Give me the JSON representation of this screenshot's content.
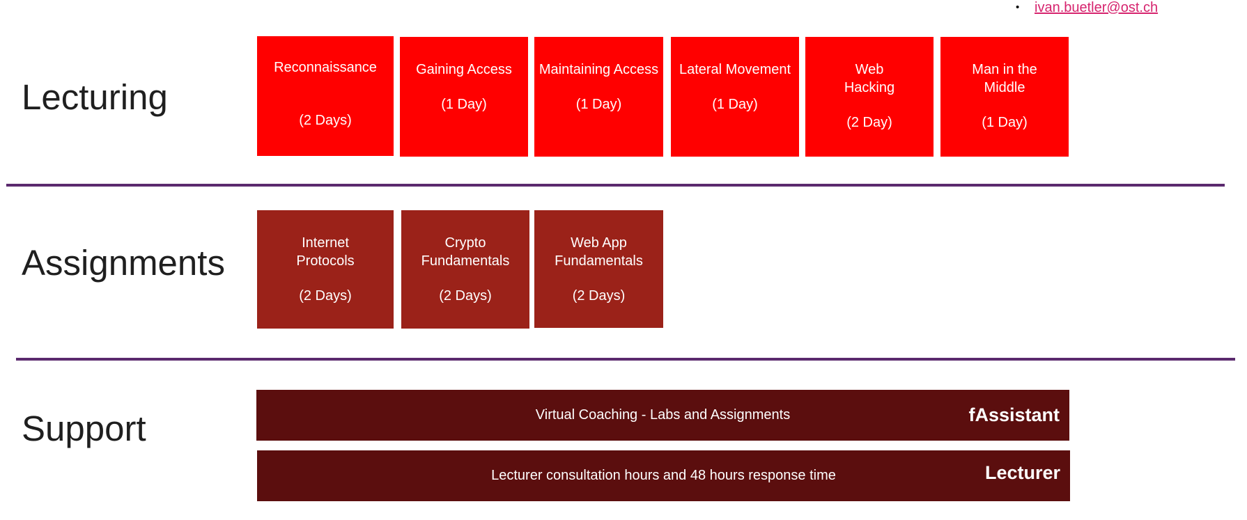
{
  "contact": {
    "bullet": "•",
    "email": "ivan.buetler@ost.ch"
  },
  "rows": {
    "lecturing": "Lecturing",
    "assignments": "Assignments",
    "support": "Support"
  },
  "lecturing_modules": [
    {
      "name": "Reconnaissance",
      "duration": "(2 Days)"
    },
    {
      "name": "Gaining Access",
      "duration": "(1 Day)"
    },
    {
      "name": "Maintaining Access",
      "duration": "(1 Day)"
    },
    {
      "name": "Lateral Movement",
      "duration": "(1 Day)"
    },
    {
      "name": "Web Hacking",
      "duration": "(2 Day)"
    },
    {
      "name": "Man in the Middle",
      "duration": "(1 Day)"
    }
  ],
  "assignment_modules": [
    {
      "name": "Internet Protocols",
      "duration": "(2 Days)"
    },
    {
      "name": "Crypto Fundamentals",
      "duration": "(2 Days)"
    },
    {
      "name": "Web App Fundamentals",
      "duration": "(2 Days)"
    }
  ],
  "support_items": [
    {
      "description": "Virtual Coaching - Labs and Assignments",
      "role": "fAssistant"
    },
    {
      "description": "Lecturer consultation hours and 48 hours response time",
      "role": "Lecturer"
    }
  ],
  "colors": {
    "lecturing_box": "#ff0000",
    "assignment_box": "#9b2219",
    "support_bar": "#5b0e0e",
    "divider": "#5b2a6e",
    "link": "#d6246e"
  }
}
